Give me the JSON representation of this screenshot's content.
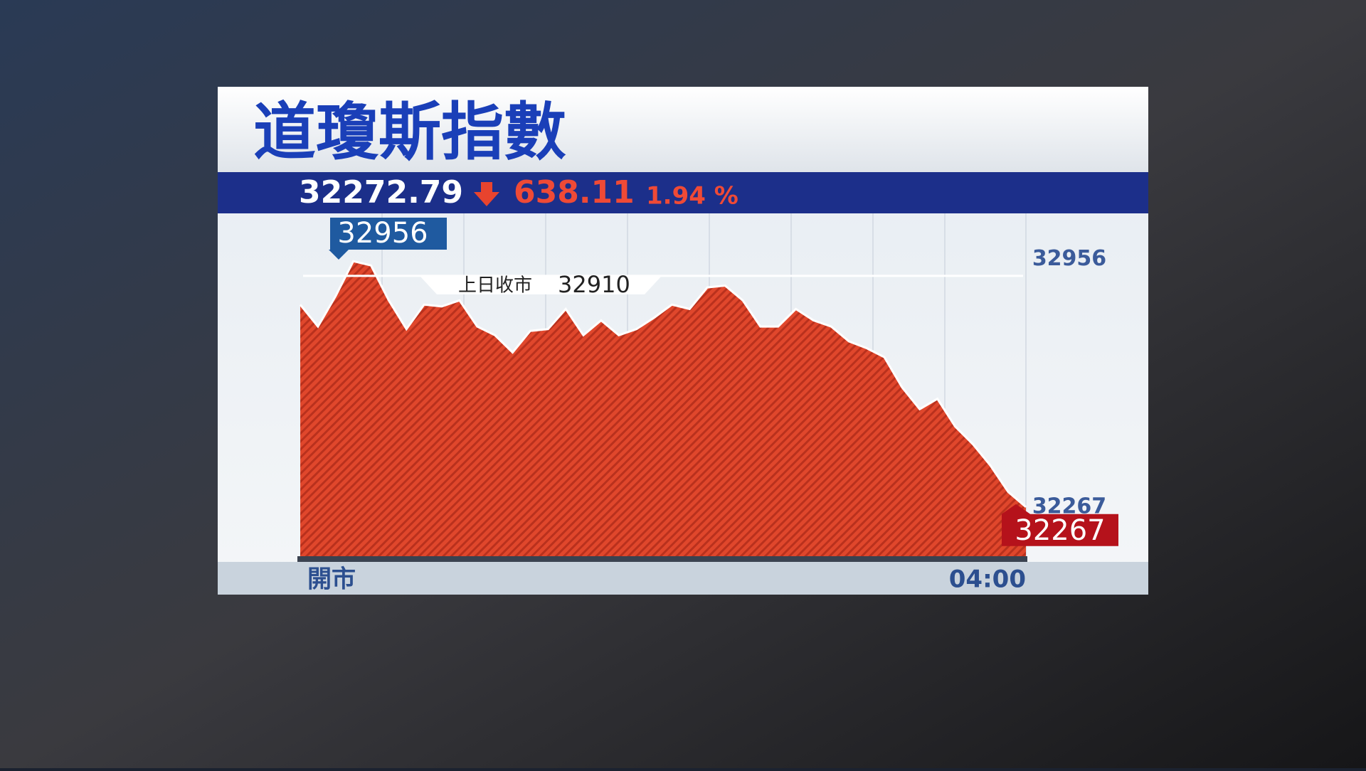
{
  "chart_data": {
    "type": "area",
    "title": "道瓊斯指數",
    "last": 32272.79,
    "change": 638.11,
    "change_pct": {
      "value": 1.94,
      "label": "1.94 %"
    },
    "color": "#d9432a",
    "values": [
      32830,
      32769,
      32854,
      32951,
      32939,
      32842,
      32762,
      32830,
      32825,
      32842,
      32769,
      32745,
      32697,
      32757,
      32762,
      32818,
      32745,
      32786,
      32745,
      32762,
      32794,
      32830,
      32818,
      32878,
      32883,
      32842,
      32769,
      32769,
      32818,
      32786,
      32769,
      32728,
      32709,
      32684,
      32600,
      32539,
      32568,
      32491,
      32442,
      32382,
      32309,
      32267
    ],
    "xticks": [
      {
        "value": 0,
        "label": "開市"
      },
      {
        "value": 41,
        "label": "04:00"
      }
    ],
    "ylim": [
      32130,
      33080
    ],
    "yticks": [
      32956,
      32267
    ],
    "high": 32956,
    "low": 32267,
    "reference": {
      "label": "上日收市",
      "value": 32910
    }
  }
}
